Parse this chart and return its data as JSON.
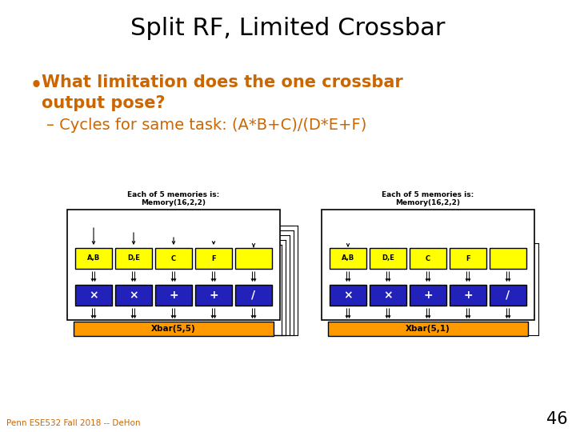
{
  "title": "Split RF, Limited Crossbar",
  "title_color": "#000000",
  "title_fontsize": 22,
  "bullet_text": "What limitation does the one crossbar\noutput pose?",
  "bullet_color": "#CC6600",
  "bullet_fontsize": 15,
  "sub_bullet_text": "– Cycles for same task: (A*B+C)/(D*E+F)",
  "sub_bullet_color": "#CC6600",
  "sub_bullet_fontsize": 14,
  "footer_text": "Penn ESE532 Fall 2018 -- DeHon",
  "footer_color": "#CC6600",
  "page_number": "46",
  "bg_color": "#FFFFFF",
  "yellow_color": "#FFFF00",
  "blue_color": "#2222BB",
  "orange_color": "#FF9900",
  "mem_labels": [
    "A,B",
    "D,E",
    "C",
    "F",
    ""
  ],
  "op_labels": [
    "×",
    "×",
    "+",
    "+",
    "/"
  ],
  "diag1_xbar": "Xbar(5,5)",
  "diag2_xbar": "Xbar(5,1)",
  "diag_label": "Each of 5 memories is:\nMemory(16,2,2)"
}
